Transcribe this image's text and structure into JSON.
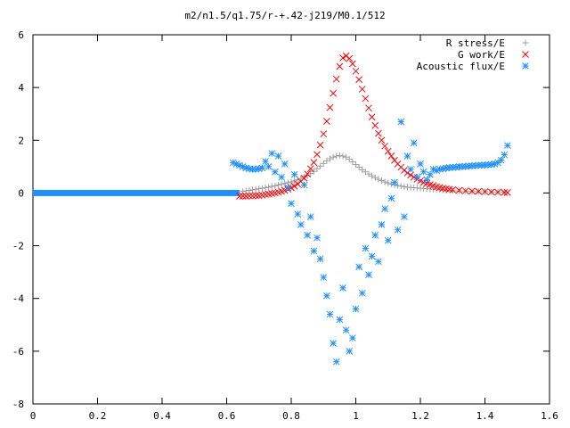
{
  "chart_data": {
    "type": "scatter",
    "title": "m2/n1.5/q1.75/r-+.42-j219/M0.1/512",
    "xlabel": "",
    "ylabel": "",
    "xlim": [
      0,
      1.6
    ],
    "ylim": [
      -8,
      6
    ],
    "grid": false,
    "legend_position": "top-right",
    "x_ticks": [
      "0",
      "0.2",
      "0.4",
      "0.6",
      "0.8",
      "1",
      "1.2",
      "1.4",
      "1.6"
    ],
    "y_ticks": [
      "6",
      "4",
      "2",
      "0",
      "-2",
      "-4",
      "-6",
      "-8"
    ],
    "series": [
      {
        "name": "R stress/E",
        "marker": "+",
        "color": "#a0a0a0",
        "x": [
          0.65,
          0.66,
          0.67,
          0.68,
          0.69,
          0.7,
          0.71,
          0.72,
          0.73,
          0.74,
          0.75,
          0.76,
          0.77,
          0.78,
          0.79,
          0.8,
          0.81,
          0.82,
          0.83,
          0.84,
          0.85,
          0.86,
          0.87,
          0.88,
          0.89,
          0.9,
          0.91,
          0.92,
          0.93,
          0.94,
          0.95,
          0.96,
          0.97,
          0.98,
          0.99,
          1.0,
          1.01,
          1.02,
          1.03,
          1.04,
          1.05,
          1.06,
          1.07,
          1.08,
          1.09,
          1.1,
          1.11,
          1.12,
          1.13,
          1.14,
          1.15,
          1.16,
          1.17,
          1.18,
          1.19,
          1.2,
          1.21,
          1.22,
          1.23,
          1.24,
          1.25,
          1.26,
          1.27,
          1.28,
          1.3,
          1.32,
          1.34,
          1.36,
          1.38,
          1.4,
          1.42,
          1.44,
          1.46
        ],
        "y": [
          0.06,
          0.08,
          0.1,
          0.12,
          0.14,
          0.16,
          0.18,
          0.2,
          0.22,
          0.25,
          0.27,
          0.3,
          0.33,
          0.36,
          0.39,
          0.42,
          0.46,
          0.5,
          0.55,
          0.6,
          0.66,
          0.74,
          0.82,
          0.92,
          1.02,
          1.12,
          1.22,
          1.3,
          1.36,
          1.4,
          1.42,
          1.4,
          1.36,
          1.28,
          1.18,
          1.08,
          0.98,
          0.88,
          0.8,
          0.72,
          0.65,
          0.58,
          0.52,
          0.47,
          0.42,
          0.38,
          0.34,
          0.31,
          0.28,
          0.26,
          0.24,
          0.22,
          0.21,
          0.2,
          0.19,
          0.18,
          0.17,
          0.16,
          0.15,
          0.14,
          0.13,
          0.12,
          0.11,
          0.1,
          0.09,
          0.08,
          0.07,
          0.06,
          0.05,
          0.05,
          0.04,
          0.04,
          0.03
        ]
      },
      {
        "name": "G work/E",
        "marker": "x",
        "color": "#ff0000",
        "x": [
          0.64,
          0.65,
          0.66,
          0.67,
          0.68,
          0.69,
          0.7,
          0.71,
          0.72,
          0.73,
          0.74,
          0.75,
          0.76,
          0.77,
          0.78,
          0.79,
          0.8,
          0.81,
          0.82,
          0.83,
          0.84,
          0.85,
          0.86,
          0.87,
          0.88,
          0.89,
          0.9,
          0.91,
          0.92,
          0.93,
          0.94,
          0.95,
          0.96,
          0.97,
          0.98,
          0.99,
          1.0,
          1.01,
          1.02,
          1.03,
          1.04,
          1.05,
          1.06,
          1.07,
          1.08,
          1.09,
          1.1,
          1.11,
          1.12,
          1.13,
          1.14,
          1.15,
          1.16,
          1.17,
          1.18,
          1.19,
          1.2,
          1.21,
          1.22,
          1.23,
          1.24,
          1.25,
          1.26,
          1.27,
          1.28,
          1.29,
          1.3,
          1.32,
          1.34,
          1.36,
          1.38,
          1.4,
          1.42,
          1.44,
          1.46,
          1.47
        ],
        "y": [
          -0.12,
          -0.12,
          -0.12,
          -0.11,
          -0.11,
          -0.1,
          -0.1,
          -0.08,
          -0.06,
          -0.04,
          -0.02,
          0.0,
          0.03,
          0.06,
          0.1,
          0.14,
          0.2,
          0.26,
          0.34,
          0.44,
          0.56,
          0.72,
          0.92,
          1.16,
          1.46,
          1.82,
          2.24,
          2.72,
          3.24,
          3.78,
          4.32,
          4.8,
          5.12,
          5.2,
          5.1,
          4.9,
          4.62,
          4.3,
          3.94,
          3.58,
          3.22,
          2.88,
          2.56,
          2.26,
          2.0,
          1.78,
          1.58,
          1.4,
          1.24,
          1.1,
          0.98,
          0.86,
          0.76,
          0.68,
          0.6,
          0.52,
          0.46,
          0.4,
          0.36,
          0.32,
          0.28,
          0.24,
          0.21,
          0.18,
          0.16,
          0.14,
          0.12,
          0.1,
          0.08,
          0.07,
          0.06,
          0.05,
          0.04,
          0.03,
          0.02,
          0.02
        ]
      },
      {
        "name": "Acoustic flux/E",
        "marker": "*",
        "color": "#1e90ff",
        "x": [
          0.62,
          0.63,
          0.64,
          0.65,
          0.66,
          0.67,
          0.68,
          0.69,
          0.7,
          0.71,
          0.72,
          0.73,
          0.74,
          0.75,
          0.76,
          0.77,
          0.78,
          0.79,
          0.8,
          0.81,
          0.82,
          0.83,
          0.84,
          0.85,
          0.86,
          0.87,
          0.88,
          0.89,
          0.9,
          0.91,
          0.92,
          0.93,
          0.94,
          0.95,
          0.96,
          0.97,
          0.98,
          0.99,
          1.0,
          1.01,
          1.02,
          1.03,
          1.04,
          1.05,
          1.06,
          1.07,
          1.08,
          1.09,
          1.1,
          1.11,
          1.12,
          1.13,
          1.14,
          1.15,
          1.16,
          1.17,
          1.18,
          1.19,
          1.2,
          1.21,
          1.22,
          1.23,
          1.24,
          1.25,
          1.26,
          1.27,
          1.28,
          1.29,
          1.3,
          1.31,
          1.32,
          1.33,
          1.34,
          1.35,
          1.36,
          1.37,
          1.38,
          1.39,
          1.4,
          1.41,
          1.42,
          1.43,
          1.44,
          1.45,
          1.46,
          1.47
        ],
        "y": [
          1.15,
          1.1,
          1.05,
          1.0,
          0.95,
          0.92,
          0.9,
          0.9,
          0.92,
          0.95,
          1.2,
          1.0,
          1.5,
          0.8,
          1.4,
          0.6,
          1.1,
          0.2,
          -0.4,
          0.7,
          -0.8,
          -1.2,
          0.3,
          -1.6,
          -0.9,
          -2.2,
          -1.7,
          -2.5,
          -3.2,
          -3.9,
          -4.6,
          -5.7,
          -6.4,
          -4.8,
          -3.6,
          -5.2,
          -6.0,
          -5.5,
          -4.4,
          -2.8,
          -3.8,
          -2.1,
          -3.1,
          -2.4,
          -1.6,
          -2.6,
          -1.2,
          -0.6,
          -1.8,
          -0.2,
          0.4,
          -1.4,
          2.7,
          -0.9,
          1.4,
          0.9,
          1.9,
          0.6,
          1.1,
          0.8,
          0.5,
          0.7,
          0.9,
          0.85,
          0.9,
          0.92,
          0.95,
          0.96,
          0.97,
          0.98,
          1.0,
          1.0,
          1.01,
          1.02,
          1.03,
          1.04,
          1.05,
          1.05,
          1.06,
          1.07,
          1.08,
          1.1,
          1.15,
          1.25,
          1.45,
          1.8
        ]
      }
    ],
    "zero_band": {
      "series": "Acoustic flux/E",
      "color": "#1e90ff",
      "x_range": [
        0,
        0.64
      ],
      "y": 0
    }
  }
}
